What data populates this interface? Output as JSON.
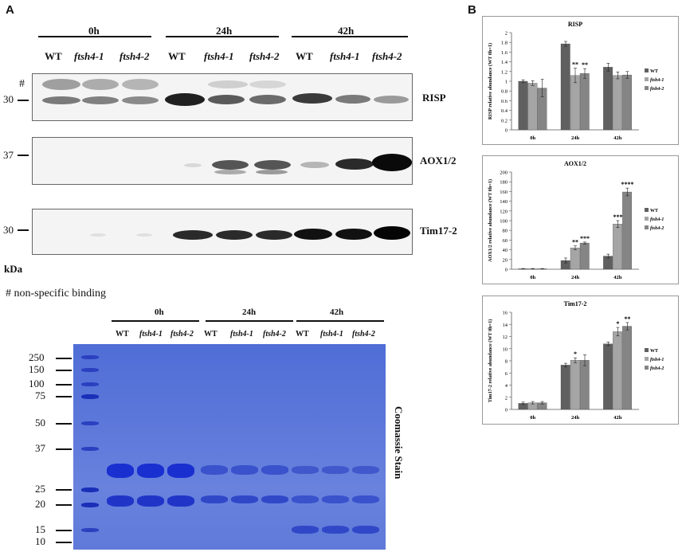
{
  "panel_a": {
    "letter": "A",
    "groups": [
      "0h",
      "24h",
      "42h"
    ],
    "lanes": [
      "WT",
      "ftsh4-1",
      "ftsh4-2",
      "WT",
      "ftsh4-1",
      "ftsh4-2",
      "WT",
      "ftsh4-1",
      "ftsh4-2"
    ],
    "blots": [
      "RISP",
      "AOX1/2",
      "Tim17-2"
    ],
    "hash": "#",
    "mw_30a": "30",
    "mw_37": "37",
    "mw_30b": "30",
    "kda": "kDa",
    "footnote": "# non-specific binding",
    "gel": {
      "groups": [
        "0h",
        "24h",
        "42h"
      ],
      "lanes": [
        "WT",
        "ftsh4-1",
        "ftsh4-2",
        "WT",
        "ftsh4-1",
        "ftsh4-2",
        "WT",
        "ftsh4-1",
        "ftsh4-2"
      ],
      "markers": [
        "250",
        "150",
        "100",
        "75",
        "50",
        "37",
        "25",
        "20",
        "15",
        "10"
      ],
      "stain_label": "Coomassie Stain"
    }
  },
  "panel_b": {
    "letter": "B"
  },
  "colors": {
    "wt": "#606060",
    "ftsh4_1": "#a5a5a5",
    "ftsh4_2": "#858585",
    "gel": "#5b76d8",
    "gel_band": "#1a2fb8"
  },
  "chart_data": [
    {
      "type": "bar",
      "title": "RISP",
      "ylabel": "RISP relative abundance (WT 0h=1)",
      "categories": [
        "0h",
        "24h",
        "42h"
      ],
      "ylim": [
        0,
        2
      ],
      "yticks": [
        "0",
        "0.2",
        "0.4",
        "0.6",
        "0.8",
        "1",
        "1.2",
        "1.4",
        "1.6",
        "1.8",
        "2"
      ],
      "series": [
        {
          "name": "WT",
          "values": [
            1.0,
            1.77,
            1.29
          ],
          "err": [
            0.03,
            0.05,
            0.08
          ]
        },
        {
          "name": "ftsh4-1",
          "values": [
            0.96,
            1.12,
            1.12
          ],
          "err": [
            0.05,
            0.15,
            0.07
          ]
        },
        {
          "name": "ftsh4-2",
          "values": [
            0.86,
            1.16,
            1.13
          ],
          "err": [
            0.18,
            0.1,
            0.07
          ]
        }
      ],
      "annotations": [
        {
          "series": 1,
          "category": 1,
          "text": "**"
        },
        {
          "series": 2,
          "category": 1,
          "text": "**"
        }
      ]
    },
    {
      "type": "bar",
      "title": "AOX1/2",
      "ylabel": "AOX1/2 relative abundance (WT 0h=1)",
      "categories": [
        "0h",
        "24h",
        "42h"
      ],
      "ylim": [
        0,
        200
      ],
      "yticks": [
        "0",
        "20",
        "40",
        "60",
        "80",
        "100",
        "120",
        "140",
        "160",
        "180",
        "200"
      ],
      "series": [
        {
          "name": "WT",
          "values": [
            1,
            18,
            27
          ],
          "err": [
            0.5,
            5,
            4
          ]
        },
        {
          "name": "ftsh4-1",
          "values": [
            1,
            44,
            93
          ],
          "err": [
            0.5,
            4,
            7
          ]
        },
        {
          "name": "ftsh4-2",
          "values": [
            1,
            54,
            159
          ],
          "err": [
            0.5,
            2,
            8
          ]
        }
      ],
      "annotations": [
        {
          "series": 1,
          "category": 1,
          "text": "**"
        },
        {
          "series": 2,
          "category": 1,
          "text": "***"
        },
        {
          "series": 1,
          "category": 2,
          "text": "***"
        },
        {
          "series": 2,
          "category": 2,
          "text": "****"
        }
      ]
    },
    {
      "type": "bar",
      "title": "Tim17-2",
      "ylabel": "Tim17-2 relative abundance (WT 0h=1)",
      "categories": [
        "0h",
        "24h",
        "42h"
      ],
      "ylim": [
        0,
        16
      ],
      "yticks": [
        "0",
        "2",
        "4",
        "6",
        "8",
        "10",
        "12",
        "14",
        "16"
      ],
      "series": [
        {
          "name": "WT",
          "values": [
            1.0,
            7.3,
            10.8
          ],
          "err": [
            0.2,
            0.3,
            0.3
          ]
        },
        {
          "name": "ftsh4-1",
          "values": [
            1.1,
            8.1,
            12.8
          ],
          "err": [
            0.2,
            0.4,
            0.7
          ]
        },
        {
          "name": "ftsh4-2",
          "values": [
            1.1,
            8.1,
            13.7
          ],
          "err": [
            0.2,
            0.9,
            0.6
          ]
        }
      ],
      "annotations": [
        {
          "series": 1,
          "category": 1,
          "text": "*"
        },
        {
          "series": 1,
          "category": 2,
          "text": "*"
        },
        {
          "series": 2,
          "category": 2,
          "text": "**"
        }
      ]
    }
  ]
}
